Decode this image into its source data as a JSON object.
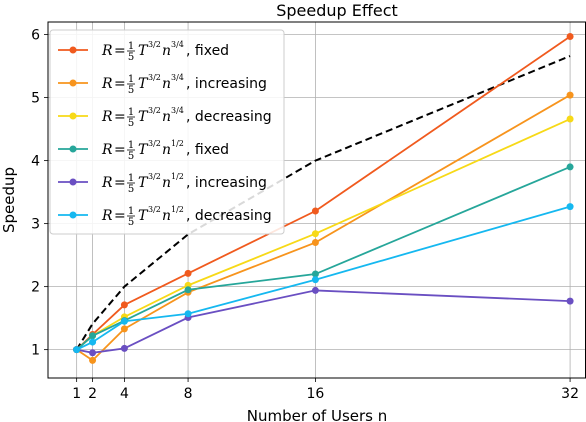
{
  "chart_data": {
    "type": "line",
    "title": "Speedup Effect",
    "xlabel": "Number of Users n",
    "ylabel": "Speedup",
    "x_ticks": [
      1,
      2,
      4,
      8,
      16,
      32
    ],
    "y_ticks": [
      1,
      2,
      3,
      4,
      5,
      6
    ],
    "xlim": [
      -0.8,
      33
    ],
    "ylim": [
      0.55,
      6.2
    ],
    "grid": true,
    "legend_position": "top-left",
    "series": [
      {
        "name": "fixed",
        "exp": "3/4",
        "color": "#f05a1e",
        "x": [
          1,
          2,
          4,
          8,
          16,
          32
        ],
        "y": [
          1.0,
          1.24,
          1.71,
          2.21,
          3.2,
          5.97
        ]
      },
      {
        "name": "increasing",
        "exp": "3/4",
        "color": "#f7941d",
        "x": [
          1,
          2,
          4,
          8,
          16,
          32
        ],
        "y": [
          1.0,
          0.83,
          1.33,
          1.91,
          2.7,
          5.04
        ]
      },
      {
        "name": "decreasing",
        "exp": "3/4",
        "color": "#f7d917",
        "x": [
          1,
          2,
          4,
          8,
          16,
          32
        ],
        "y": [
          1.0,
          1.22,
          1.52,
          2.02,
          2.84,
          4.66
        ]
      },
      {
        "name": "fixed",
        "exp": "1/2",
        "color": "#26a69a",
        "x": [
          1,
          2,
          4,
          8,
          16,
          32
        ],
        "y": [
          1.0,
          1.22,
          1.46,
          1.95,
          2.2,
          3.9
        ]
      },
      {
        "name": "increasing",
        "exp": "1/2",
        "color": "#6a4fc2",
        "x": [
          1,
          2,
          4,
          8,
          16,
          32
        ],
        "y": [
          1.0,
          0.95,
          1.02,
          1.51,
          1.94,
          1.77
        ]
      },
      {
        "name": "decreasing",
        "exp": "1/2",
        "color": "#15b8f0",
        "x": [
          1,
          2,
          4,
          8,
          16,
          32
        ],
        "y": [
          1.0,
          1.12,
          1.45,
          1.57,
          2.11,
          3.27
        ]
      }
    ],
    "dashed_curve": {
      "color": "#000000",
      "x": [
        1,
        2,
        4,
        8,
        16,
        32
      ],
      "y": [
        1.0,
        1.41,
        2.0,
        2.83,
        4.0,
        5.66
      ]
    }
  }
}
